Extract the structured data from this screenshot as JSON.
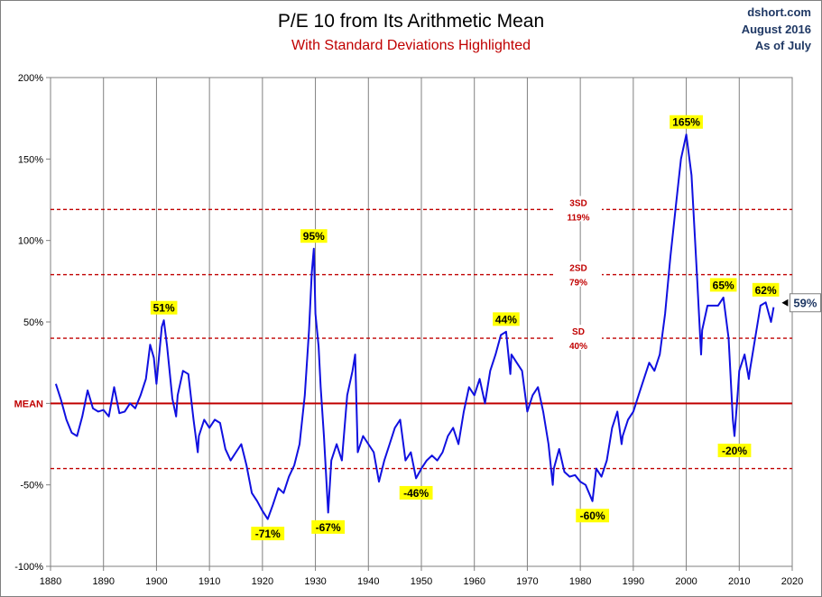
{
  "header": {
    "title": "P/E 10 from Its Arithmetic Mean",
    "subtitle": "With Standard Deviations Highlighted",
    "source": "dshort.com",
    "date": "August 2016",
    "as_of": "As of July"
  },
  "colors": {
    "series": "#1010e0",
    "mean": "#c00000",
    "sd": "#c00000",
    "highlight": "#ffff00",
    "grid": "#808080"
  },
  "chart_data": {
    "type": "line",
    "title": "P/E 10 from Its Arithmetic Mean",
    "subtitle": "With Standard Deviations Highlighted",
    "xlim": [
      1880,
      2020
    ],
    "ylim": [
      -100,
      200
    ],
    "x_ticks": [
      1880,
      1890,
      1900,
      1910,
      1920,
      1930,
      1940,
      1950,
      1960,
      1970,
      1980,
      1990,
      2000,
      2010,
      2020
    ],
    "y_ticks": [
      {
        "value": 200,
        "label": "200%"
      },
      {
        "value": 150,
        "label": "150%"
      },
      {
        "value": 100,
        "label": "100%"
      },
      {
        "value": 50,
        "label": "50%"
      },
      {
        "value": 0,
        "label": "MEAN"
      },
      {
        "value": -50,
        "label": "-50%"
      },
      {
        "value": -100,
        "label": "-100%"
      }
    ],
    "grid": {
      "vertical": true,
      "horizontal": false
    },
    "mean_line": {
      "value": 0,
      "label": "MEAN"
    },
    "sd_lines": [
      {
        "value": 119,
        "label_top": "3SD",
        "label_bottom": "119%"
      },
      {
        "value": 79,
        "label_top": "2SD",
        "label_bottom": "79%"
      },
      {
        "value": 40,
        "label_top": "SD",
        "label_bottom": "40%"
      },
      {
        "value": -40
      }
    ],
    "series": [
      {
        "points": [
          [
            1881.0,
            12
          ],
          [
            1882.0,
            2
          ],
          [
            1883.0,
            -10
          ],
          [
            1884.0,
            -18
          ],
          [
            1885.0,
            -20
          ],
          [
            1886.0,
            -8
          ],
          [
            1887.0,
            8
          ],
          [
            1888.0,
            -3
          ],
          [
            1889.0,
            -5
          ],
          [
            1890.0,
            -4
          ],
          [
            1891.0,
            -8
          ],
          [
            1892.0,
            10
          ],
          [
            1893.0,
            -6
          ],
          [
            1894.0,
            -5
          ],
          [
            1895.0,
            0
          ],
          [
            1896.0,
            -3
          ],
          [
            1897.0,
            5
          ],
          [
            1898.0,
            15
          ],
          [
            1898.8,
            36
          ],
          [
            1899.5,
            28
          ],
          [
            1900.0,
            12
          ],
          [
            1901.0,
            47
          ],
          [
            1901.4,
            51
          ],
          [
            1902.0,
            35
          ],
          [
            1903.0,
            3
          ],
          [
            1903.7,
            -8
          ],
          [
            1904.0,
            5
          ],
          [
            1905.0,
            20
          ],
          [
            1906.0,
            18
          ],
          [
            1907.0,
            -10
          ],
          [
            1907.8,
            -30
          ],
          [
            1908.0,
            -20
          ],
          [
            1909.0,
            -10
          ],
          [
            1910.0,
            -15
          ],
          [
            1911.0,
            -10
          ],
          [
            1912.0,
            -12
          ],
          [
            1913.0,
            -28
          ],
          [
            1914.0,
            -35
          ],
          [
            1915.0,
            -30
          ],
          [
            1916.0,
            -25
          ],
          [
            1917.0,
            -38
          ],
          [
            1918.0,
            -55
          ],
          [
            1919.0,
            -60
          ],
          [
            1920.0,
            -66
          ],
          [
            1921.0,
            -71
          ],
          [
            1922.0,
            -62
          ],
          [
            1923.0,
            -52
          ],
          [
            1924.0,
            -55
          ],
          [
            1925.0,
            -45
          ],
          [
            1926.0,
            -38
          ],
          [
            1927.0,
            -25
          ],
          [
            1928.0,
            5
          ],
          [
            1928.8,
            45
          ],
          [
            1929.3,
            80
          ],
          [
            1929.7,
            95
          ],
          [
            1930.0,
            55
          ],
          [
            1930.6,
            35
          ],
          [
            1931.0,
            10
          ],
          [
            1931.6,
            -20
          ],
          [
            1932.4,
            -67
          ],
          [
            1933.0,
            -35
          ],
          [
            1934.0,
            -25
          ],
          [
            1935.0,
            -35
          ],
          [
            1936.0,
            5
          ],
          [
            1937.0,
            20
          ],
          [
            1937.5,
            30
          ],
          [
            1938.0,
            -30
          ],
          [
            1939.0,
            -20
          ],
          [
            1940.0,
            -25
          ],
          [
            1941.0,
            -30
          ],
          [
            1942.0,
            -48
          ],
          [
            1943.0,
            -35
          ],
          [
            1944.0,
            -25
          ],
          [
            1945.0,
            -15
          ],
          [
            1946.0,
            -10
          ],
          [
            1947.0,
            -35
          ],
          [
            1948.0,
            -30
          ],
          [
            1949.0,
            -46
          ],
          [
            1950.0,
            -40
          ],
          [
            1951.0,
            -35
          ],
          [
            1952.0,
            -32
          ],
          [
            1953.0,
            -35
          ],
          [
            1954.0,
            -30
          ],
          [
            1955.0,
            -20
          ],
          [
            1956.0,
            -15
          ],
          [
            1957.0,
            -25
          ],
          [
            1958.0,
            -5
          ],
          [
            1959.0,
            10
          ],
          [
            1960.0,
            5
          ],
          [
            1961.0,
            15
          ],
          [
            1962.0,
            0
          ],
          [
            1963.0,
            20
          ],
          [
            1964.0,
            30
          ],
          [
            1965.0,
            42
          ],
          [
            1966.0,
            44
          ],
          [
            1966.8,
            18
          ],
          [
            1967.0,
            30
          ],
          [
            1968.0,
            25
          ],
          [
            1969.0,
            20
          ],
          [
            1970.0,
            -5
          ],
          [
            1971.0,
            5
          ],
          [
            1972.0,
            10
          ],
          [
            1973.0,
            -5
          ],
          [
            1974.0,
            -25
          ],
          [
            1974.8,
            -50
          ],
          [
            1975.0,
            -40
          ],
          [
            1976.0,
            -28
          ],
          [
            1977.0,
            -42
          ],
          [
            1978.0,
            -45
          ],
          [
            1979.0,
            -44
          ],
          [
            1980.0,
            -48
          ],
          [
            1981.0,
            -50
          ],
          [
            1982.3,
            -60
          ],
          [
            1983.0,
            -40
          ],
          [
            1984.0,
            -45
          ],
          [
            1985.0,
            -35
          ],
          [
            1986.0,
            -15
          ],
          [
            1987.0,
            -5
          ],
          [
            1987.8,
            -25
          ],
          [
            1988.0,
            -20
          ],
          [
            1989.0,
            -10
          ],
          [
            1990.0,
            -5
          ],
          [
            1991.0,
            5
          ],
          [
            1992.0,
            15
          ],
          [
            1993.0,
            25
          ],
          [
            1994.0,
            20
          ],
          [
            1995.0,
            30
          ],
          [
            1996.0,
            55
          ],
          [
            1997.0,
            90
          ],
          [
            1998.0,
            120
          ],
          [
            1999.0,
            150
          ],
          [
            2000.0,
            165
          ],
          [
            2001.0,
            140
          ],
          [
            2002.0,
            80
          ],
          [
            2002.8,
            30
          ],
          [
            2003.0,
            45
          ],
          [
            2004.0,
            60
          ],
          [
            2005.0,
            60
          ],
          [
            2006.0,
            60
          ],
          [
            2007.0,
            65
          ],
          [
            2008.0,
            40
          ],
          [
            2008.8,
            -10
          ],
          [
            2009.1,
            -20
          ],
          [
            2009.8,
            10
          ],
          [
            2010.0,
            20
          ],
          [
            2011.0,
            30
          ],
          [
            2011.8,
            15
          ],
          [
            2012.0,
            20
          ],
          [
            2013.0,
            40
          ],
          [
            2014.0,
            60
          ],
          [
            2015.0,
            62
          ],
          [
            2016.0,
            50
          ],
          [
            2016.5,
            59
          ]
        ]
      }
    ],
    "annotations": [
      {
        "x": 1901.4,
        "y": 51,
        "label": "51%",
        "position": "above"
      },
      {
        "x": 1929.7,
        "y": 95,
        "label": "95%",
        "position": "above"
      },
      {
        "x": 1921.0,
        "y": -71,
        "label": "-71%",
        "position": "below"
      },
      {
        "x": 1932.4,
        "y": -67,
        "label": "-67%",
        "position": "below"
      },
      {
        "x": 1949.0,
        "y": -46,
        "label": "-46%",
        "position": "below"
      },
      {
        "x": 1966.0,
        "y": 44,
        "label": "44%",
        "position": "above"
      },
      {
        "x": 1982.3,
        "y": -60,
        "label": "-60%",
        "position": "below"
      },
      {
        "x": 2000.0,
        "y": 165,
        "label": "165%",
        "position": "above"
      },
      {
        "x": 2007.0,
        "y": 65,
        "label": "65%",
        "position": "above"
      },
      {
        "x": 2009.1,
        "y": -20,
        "label": "-20%",
        "position": "below"
      },
      {
        "x": 2015.0,
        "y": 62,
        "label": "62%",
        "position": "above"
      }
    ],
    "current_value": {
      "x": 2016.5,
      "y": 59,
      "label": "59%"
    }
  }
}
